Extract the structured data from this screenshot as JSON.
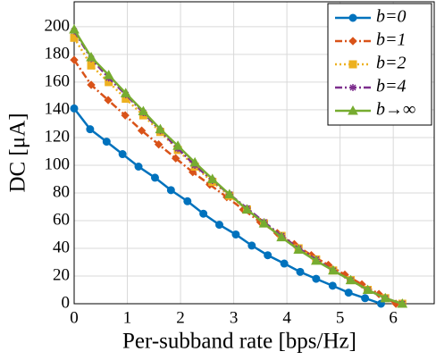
{
  "chart_data": {
    "type": "line",
    "xlabel": "Per-subband rate [bps/Hz]",
    "ylabel": "DC [μA]",
    "xlim": [
      0,
      6.77
    ],
    "ylim": [
      0,
      218
    ],
    "xticks": [
      0,
      1,
      2,
      3,
      4,
      5,
      6
    ],
    "yticks": [
      0,
      20,
      40,
      60,
      80,
      100,
      120,
      140,
      160,
      180,
      200
    ],
    "grid": true,
    "legend": "upper right",
    "series": [
      {
        "name": "b=0",
        "color": "#0072BD",
        "marker": "circle",
        "dash": "solid",
        "x": [
          0,
          0.3,
          0.61,
          0.91,
          1.21,
          1.52,
          1.82,
          2.13,
          2.43,
          2.73,
          3.04,
          3.34,
          3.64,
          3.95,
          4.25,
          4.55,
          4.86,
          5.16,
          5.47,
          5.77
        ],
        "values": [
          141,
          126,
          117,
          108,
          99,
          91,
          82,
          74,
          65,
          57,
          50,
          42,
          35,
          29,
          23,
          18,
          13,
          8,
          4,
          0
        ]
      },
      {
        "name": "b=1",
        "color": "#D95319",
        "marker": "diamond",
        "dash": "dashdot",
        "x": [
          0,
          0.32,
          0.64,
          0.96,
          1.27,
          1.59,
          1.91,
          2.23,
          2.55,
          2.87,
          3.18,
          3.5,
          3.82,
          4.14,
          4.46,
          4.78,
          5.09,
          5.41,
          5.73,
          6.05
        ],
        "values": [
          176,
          158,
          147,
          136,
          125,
          115,
          105,
          95,
          86,
          77,
          68,
          59,
          51,
          43,
          35,
          28,
          21,
          14,
          7,
          0
        ]
      },
      {
        "name": "b=2",
        "color": "#EDB120",
        "marker": "square",
        "dash": "dotted",
        "x": [
          0,
          0.32,
          0.65,
          0.97,
          1.3,
          1.62,
          1.95,
          2.27,
          2.6,
          2.92,
          3.25,
          3.57,
          3.9,
          4.22,
          4.55,
          4.87,
          5.2,
          5.52,
          5.85,
          6.17
        ],
        "values": [
          192,
          172,
          160,
          148,
          136,
          124,
          111,
          99,
          88,
          78,
          68,
          58,
          49,
          40,
          32,
          24,
          17,
          10,
          4,
          0
        ]
      },
      {
        "name": "b=4",
        "color": "#7E2F8E",
        "marker": "star",
        "dash": "dashdot",
        "x": [
          0,
          0.32,
          0.65,
          0.97,
          1.3,
          1.62,
          1.95,
          2.27,
          2.6,
          2.92,
          3.25,
          3.57,
          3.9,
          4.22,
          4.55,
          4.87,
          5.2,
          5.52,
          5.85,
          6.17
        ],
        "values": [
          197,
          177,
          163,
          151,
          138,
          125,
          112,
          100,
          89,
          79,
          69,
          59,
          49,
          40,
          32,
          24,
          17,
          10,
          4,
          0
        ]
      },
      {
        "name": "b→∞",
        "color": "#77AC30",
        "marker": "triangle",
        "dash": "solid",
        "x": [
          0,
          0.32,
          0.65,
          0.97,
          1.3,
          1.62,
          1.95,
          2.27,
          2.6,
          2.92,
          3.25,
          3.57,
          3.9,
          4.22,
          4.55,
          4.87,
          5.2,
          5.52,
          5.85,
          6.17
        ],
        "values": [
          198,
          178,
          165,
          152,
          139,
          126,
          114,
          102,
          90,
          79,
          68,
          58,
          48,
          39,
          31,
          24,
          17,
          10,
          4,
          0
        ]
      }
    ]
  }
}
